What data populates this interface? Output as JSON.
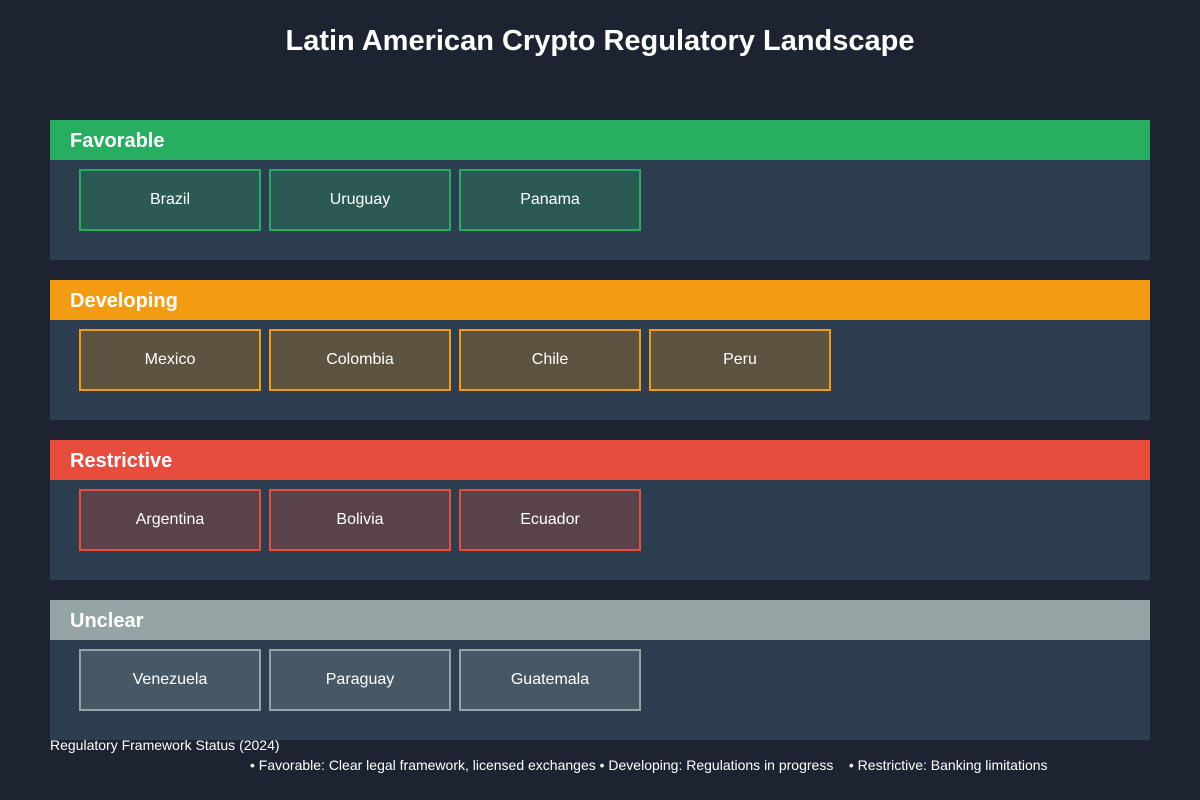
{
  "title": "Latin American Crypto Regulatory Landscape",
  "categories": [
    {
      "name": "Favorable",
      "color": "#27ae60",
      "tile_background": "#2b5a55",
      "countries": [
        "Brazil",
        "Uruguay",
        "Panama"
      ]
    },
    {
      "name": "Developing",
      "color": "#f39c12",
      "tile_background": "#5c5441",
      "countries": [
        "Mexico",
        "Colombia",
        "Chile",
        "Peru"
      ]
    },
    {
      "name": "Restrictive",
      "color": "#e74c3c",
      "tile_background": "#5a424b",
      "countries": [
        "Argentina",
        "Bolivia",
        "Ecuador"
      ]
    },
    {
      "name": "Unclear",
      "color": "#95a5a6",
      "tile_background": "#465866",
      "countries": [
        "Venezuela",
        "Paraguay",
        "Guatemala"
      ]
    }
  ],
  "footer": {
    "title": "Regulatory Framework Status (2024)",
    "legend": "• Favorable: Clear legal framework, licensed exchanges • Developing: Regulations in progress    • Restrictive: Banking limitations"
  }
}
